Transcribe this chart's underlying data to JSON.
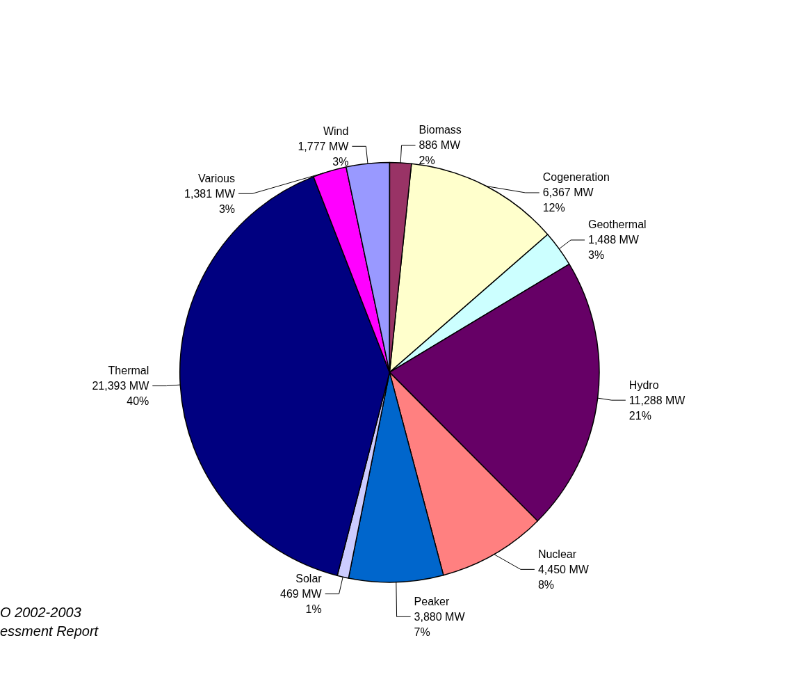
{
  "chart_data": {
    "type": "pie",
    "categories": [
      "Cogeneration",
      "Geothermal",
      "Hydro",
      "Nuclear",
      "Peaker",
      "Solar",
      "Thermal",
      "Various",
      "Wind",
      "Biomass"
    ],
    "values": [
      6367,
      1488,
      11288,
      4450,
      3880,
      469,
      21393,
      1381,
      1777,
      886
    ],
    "colors": [
      "#ffffcc",
      "#ccffff",
      "#660066",
      "#ff8080",
      "#0066cc",
      "#ccccff",
      "#000080",
      "#ff00ff",
      "#9999ff",
      "#993366"
    ],
    "value_labels": [
      "6,367 MW\n12%",
      "1,488 MW\n3%",
      "11,288 MW\n21%",
      "4,450 MW\n8%",
      "3,880 MW\n7%",
      "469 MW\n1%",
      "21,393 MW\n40%",
      "1,381 MW\n3%",
      "1,777 MW\n3%",
      "886 MW\n2%"
    ],
    "annotations": [
      "O 2002-2003",
      "essment Report"
    ],
    "legend": false
  }
}
